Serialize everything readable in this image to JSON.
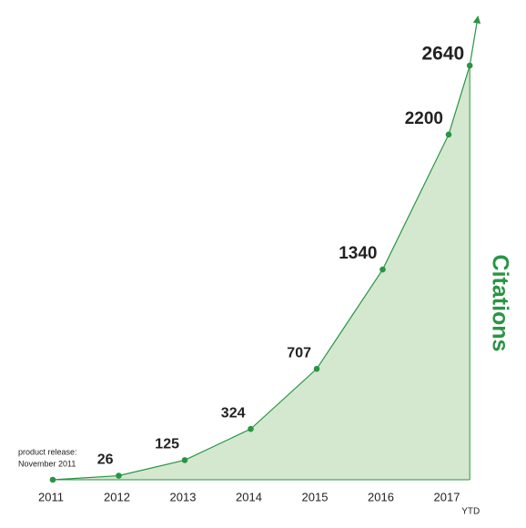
{
  "chart_data": {
    "type": "area",
    "axis_label": "Citations",
    "categories": [
      "2011",
      "2012",
      "2013",
      "2014",
      "2015",
      "2016",
      "2017",
      "YTD"
    ],
    "values": [
      0,
      26,
      125,
      324,
      707,
      1340,
      2200,
      2640
    ],
    "annotation": [
      "product release:",
      "November 2011"
    ],
    "ylim": [
      0,
      2640
    ],
    "color": "#2a9444",
    "fill": "#d3e8cf"
  }
}
